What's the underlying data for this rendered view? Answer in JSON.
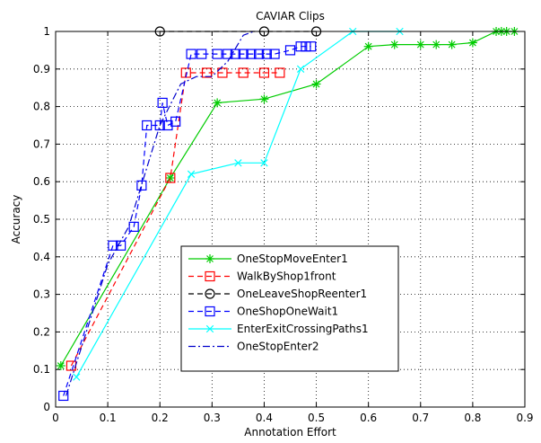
{
  "chart_data": {
    "type": "line",
    "title": "CAVIAR Clips",
    "xlabel": "Annotation Effort",
    "ylabel": "Accuracy",
    "xlim": [
      0,
      0.9
    ],
    "ylim": [
      0,
      1
    ],
    "xticks": [
      "0",
      "0.1",
      "0.2",
      "0.3",
      "0.4",
      "0.5",
      "0.6",
      "0.7",
      "0.8",
      "0.9"
    ],
    "yticks": [
      "0",
      "0.1",
      "0.2",
      "0.3",
      "0.4",
      "0.5",
      "0.6",
      "0.7",
      "0.8",
      "0.9",
      "1"
    ],
    "grid": true,
    "legend_position": "lower-center",
    "series": [
      {
        "name": "OneStopMoveEnter1",
        "color": "#00cc00",
        "line": "solid",
        "marker": "star",
        "x": [
          0.01,
          0.22,
          0.31,
          0.4,
          0.5,
          0.6,
          0.65,
          0.7,
          0.73,
          0.76,
          0.8,
          0.845,
          0.855,
          0.865,
          0.88
        ],
        "y": [
          0.11,
          0.61,
          0.81,
          0.82,
          0.86,
          0.96,
          0.965,
          0.965,
          0.965,
          0.965,
          0.97,
          1.0,
          1.0,
          1.0,
          1.0
        ]
      },
      {
        "name": "WalkByShop1front",
        "color": "#ff0000",
        "line": "dashed",
        "marker": "square",
        "x": [
          0.03,
          0.22,
          0.25,
          0.29,
          0.32,
          0.36,
          0.4,
          0.43
        ],
        "y": [
          0.11,
          0.61,
          0.89,
          0.89,
          0.89,
          0.89,
          0.89,
          0.89
        ]
      },
      {
        "name": "OneLeaveShopReenter1",
        "color": "#000000",
        "line": "dashed",
        "marker": "circle",
        "x": [
          0.2,
          0.4,
          0.5
        ],
        "y": [
          1.0,
          1.0,
          1.0
        ]
      },
      {
        "name": "OneShopOneWait1",
        "color": "#0000ff",
        "line": "dashed",
        "marker": "square",
        "x": [
          0.015,
          0.11,
          0.125,
          0.15,
          0.165,
          0.175,
          0.2,
          0.205,
          0.215,
          0.23,
          0.26,
          0.28,
          0.31,
          0.33,
          0.345,
          0.36,
          0.375,
          0.39,
          0.405,
          0.42,
          0.45,
          0.47,
          0.48,
          0.49
        ],
        "y": [
          0.03,
          0.43,
          0.43,
          0.48,
          0.59,
          0.75,
          0.75,
          0.81,
          0.75,
          0.76,
          0.94,
          0.94,
          0.94,
          0.94,
          0.94,
          0.94,
          0.94,
          0.94,
          0.94,
          0.94,
          0.95,
          0.96,
          0.96,
          0.96
        ]
      },
      {
        "name": "EnterExitCrossingPaths1",
        "color": "#00ffff",
        "line": "solid",
        "marker": "x",
        "x": [
          0.04,
          0.26,
          0.35,
          0.4,
          0.47,
          0.57,
          0.66
        ],
        "y": [
          0.08,
          0.62,
          0.65,
          0.65,
          0.9,
          1.0,
          1.0
        ]
      },
      {
        "name": "OneStopEnter2",
        "color": "#0000cc",
        "line": "dashdot",
        "marker": "none",
        "x": [
          0.02,
          0.1,
          0.14,
          0.2,
          0.24,
          0.27,
          0.3,
          0.33,
          0.36,
          0.38
        ],
        "y": [
          0.03,
          0.38,
          0.48,
          0.75,
          0.86,
          0.88,
          0.88,
          0.92,
          0.99,
          1.0
        ]
      }
    ]
  }
}
